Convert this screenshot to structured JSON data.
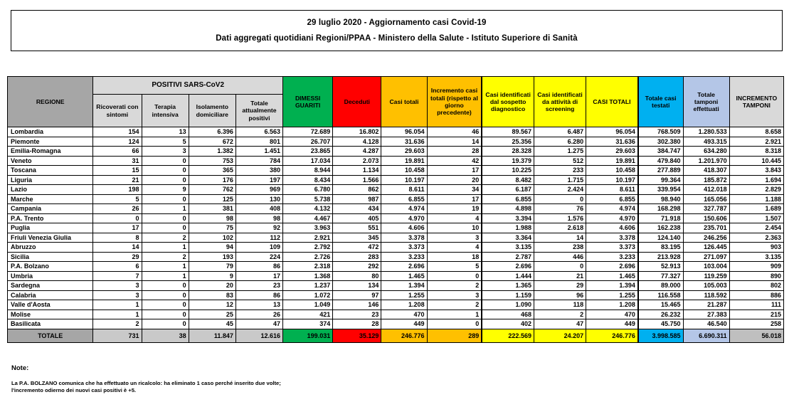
{
  "title": {
    "line1": "29 luglio 2020 - Aggiornamento casi Covid-19",
    "line2": "Dati aggregati quotidiani Regioni/PPAA - Ministero della Salute - Istituto Superiore di Sanità"
  },
  "table": {
    "group_header": "POSITIVI SARS-CoV2",
    "headers": {
      "regione": "REGIONE",
      "ricoverati": "Ricoverati con sintomi",
      "terapia": "Terapia intensiva",
      "isolamento": "Isolamento domiciliare",
      "totale_positivi": "Totale attualmente positivi",
      "dimessi": "DIMESSI GUARITI",
      "deceduti": "Deceduti",
      "casi_totali": "Casi totali",
      "incremento": "Incremento casi totali (rispetto al giorno precedente)",
      "sospetto": "Casi identificati dal sospetto diagnostico",
      "screening": "Casi identificati da attività di screening",
      "casi_totali_maiusc": "CASI TOTALI",
      "testati": "Totale casi testati",
      "tamponi": "Totale tamponi effettuati",
      "incremento_tamponi": "INCREMENTO TAMPONI"
    },
    "rows": [
      {
        "regione": "Lombardia",
        "values": [
          "154",
          "13",
          "6.396",
          "6.563",
          "72.689",
          "16.802",
          "96.054",
          "46",
          "89.567",
          "6.487",
          "96.054",
          "768.509",
          "1.280.533",
          "8.658"
        ]
      },
      {
        "regione": "Piemonte",
        "values": [
          "124",
          "5",
          "672",
          "801",
          "26.707",
          "4.128",
          "31.636",
          "14",
          "25.356",
          "6.280",
          "31.636",
          "302.380",
          "493.315",
          "2.921"
        ]
      },
      {
        "regione": "Emilia-Romagna",
        "values": [
          "66",
          "3",
          "1.382",
          "1.451",
          "23.865",
          "4.287",
          "29.603",
          "28",
          "28.328",
          "1.275",
          "29.603",
          "384.747",
          "634.280",
          "8.318"
        ]
      },
      {
        "regione": "Veneto",
        "values": [
          "31",
          "0",
          "753",
          "784",
          "17.034",
          "2.073",
          "19.891",
          "42",
          "19.379",
          "512",
          "19.891",
          "479.840",
          "1.201.970",
          "10.445"
        ]
      },
      {
        "regione": "Toscana",
        "values": [
          "15",
          "0",
          "365",
          "380",
          "8.944",
          "1.134",
          "10.458",
          "17",
          "10.225",
          "233",
          "10.458",
          "277.889",
          "418.307",
          "3.843"
        ]
      },
      {
        "regione": "Liguria",
        "values": [
          "21",
          "0",
          "176",
          "197",
          "8.434",
          "1.566",
          "10.197",
          "20",
          "8.482",
          "1.715",
          "10.197",
          "99.364",
          "185.872",
          "1.694"
        ]
      },
      {
        "regione": "Lazio",
        "values": [
          "198",
          "9",
          "762",
          "969",
          "6.780",
          "862",
          "8.611",
          "34",
          "6.187",
          "2.424",
          "8.611",
          "339.954",
          "412.018",
          "2.829"
        ]
      },
      {
        "regione": "Marche",
        "values": [
          "5",
          "0",
          "125",
          "130",
          "5.738",
          "987",
          "6.855",
          "17",
          "6.855",
          "0",
          "6.855",
          "98.940",
          "165.056",
          "1.188"
        ]
      },
      {
        "regione": "Campania",
        "values": [
          "26",
          "1",
          "381",
          "408",
          "4.132",
          "434",
          "4.974",
          "19",
          "4.898",
          "76",
          "4.974",
          "168.298",
          "327.787",
          "1.689"
        ]
      },
      {
        "regione": "P.A. Trento",
        "values": [
          "0",
          "0",
          "98",
          "98",
          "4.467",
          "405",
          "4.970",
          "4",
          "3.394",
          "1.576",
          "4.970",
          "71.918",
          "150.606",
          "1.507"
        ]
      },
      {
        "regione": "Puglia",
        "values": [
          "17",
          "0",
          "75",
          "92",
          "3.963",
          "551",
          "4.606",
          "10",
          "1.988",
          "2.618",
          "4.606",
          "162.238",
          "235.701",
          "2.454"
        ]
      },
      {
        "regione": "Friuli Venezia Giulia",
        "values": [
          "8",
          "2",
          "102",
          "112",
          "2.921",
          "345",
          "3.378",
          "3",
          "3.364",
          "14",
          "3.378",
          "124.140",
          "246.256",
          "2.363"
        ]
      },
      {
        "regione": "Abruzzo",
        "values": [
          "14",
          "1",
          "94",
          "109",
          "2.792",
          "472",
          "3.373",
          "4",
          "3.135",
          "238",
          "3.373",
          "83.195",
          "126.445",
          "903"
        ]
      },
      {
        "regione": "Sicilia",
        "values": [
          "29",
          "2",
          "193",
          "224",
          "2.726",
          "283",
          "3.233",
          "18",
          "2.787",
          "446",
          "3.233",
          "213.928",
          "271.097",
          "3.135"
        ]
      },
      {
        "regione": "P.A. Bolzano",
        "values": [
          "6",
          "1",
          "79",
          "86",
          "2.318",
          "292",
          "2.696",
          "5",
          "2.696",
          "0",
          "2.696",
          "52.913",
          "103.004",
          "909"
        ]
      },
      {
        "regione": "Umbria",
        "values": [
          "7",
          "1",
          "9",
          "17",
          "1.368",
          "80",
          "1.465",
          "0",
          "1.444",
          "21",
          "1.465",
          "77.327",
          "119.259",
          "890"
        ]
      },
      {
        "regione": "Sardegna",
        "values": [
          "3",
          "0",
          "20",
          "23",
          "1.237",
          "134",
          "1.394",
          "2",
          "1.365",
          "29",
          "1.394",
          "89.000",
          "105.003",
          "802"
        ]
      },
      {
        "regione": "Calabria",
        "values": [
          "3",
          "0",
          "83",
          "86",
          "1.072",
          "97",
          "1.255",
          "3",
          "1.159",
          "96",
          "1.255",
          "116.558",
          "118.592",
          "886"
        ]
      },
      {
        "regione": "Valle d'Aosta",
        "values": [
          "1",
          "0",
          "12",
          "13",
          "1.049",
          "146",
          "1.208",
          "2",
          "1.090",
          "118",
          "1.208",
          "15.465",
          "21.287",
          "111"
        ]
      },
      {
        "regione": "Molise",
        "values": [
          "1",
          "0",
          "25",
          "26",
          "421",
          "23",
          "470",
          "1",
          "468",
          "2",
          "470",
          "26.232",
          "27.383",
          "215"
        ]
      },
      {
        "regione": "Basilicata",
        "values": [
          "2",
          "0",
          "45",
          "47",
          "374",
          "28",
          "449",
          "0",
          "402",
          "47",
          "449",
          "45.750",
          "46.540",
          "258"
        ]
      }
    ],
    "totale": {
      "label": "TOTALE",
      "values": [
        "731",
        "38",
        "11.847",
        "12.616",
        "199.031",
        "35.129",
        "246.776",
        "289",
        "222.569",
        "24.207",
        "246.776",
        "3.998.585",
        "6.690.311",
        "56.018"
      ]
    }
  },
  "notes": {
    "title": "Note:",
    "line1": "La P.A. BOLZANO comunica che ha effettuato un ricalcolo: ha eliminato 1 caso perché inserito due volte;",
    "line2": "l'incremento odierno dei nuovi casi positivi è +5."
  },
  "colors": {
    "header_gray": "#a6a6a6",
    "header_light_gray": "#d9d9d9",
    "green": "#00b050",
    "red": "#ff0000",
    "orange": "#ffc000",
    "yellow": "#ffff00",
    "cyan": "#00b0f0",
    "periwinkle": "#b4c6e7",
    "totale_gray": "#c9c9c9"
  }
}
